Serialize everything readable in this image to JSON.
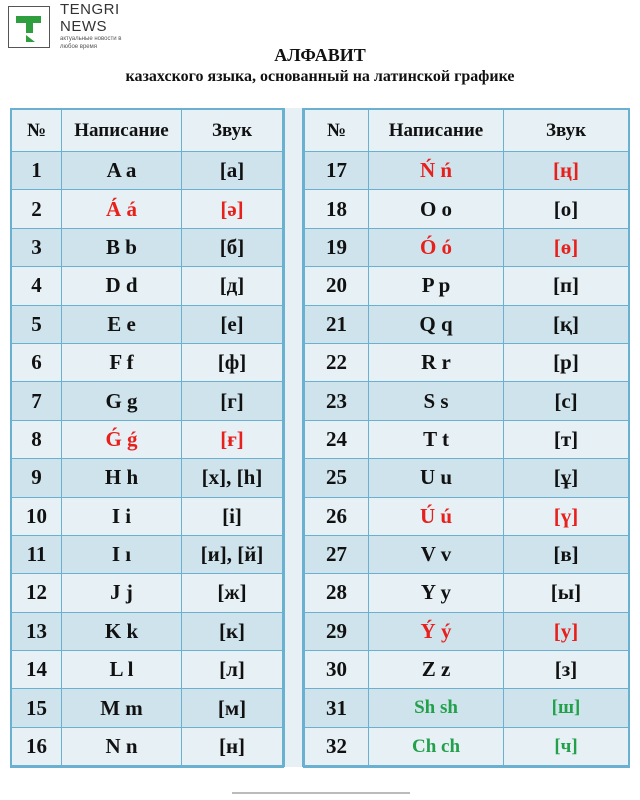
{
  "brand": {
    "name_line1": "TENGRI",
    "name_line2": "NEWS",
    "tagline": "актуальные новости в любое время",
    "color": "#2e9e3e"
  },
  "title": "АЛФАВИТ",
  "subtitle": "казахского языка, основанный на латинской графике",
  "headers": [
    "№",
    "Написание",
    "Звук"
  ],
  "colors": {
    "special": "#e8201c",
    "digraph": "#22a04a",
    "grid": "#6ab0d0"
  },
  "left": [
    {
      "n": "1",
      "letter": "A a",
      "sound": "[а]"
    },
    {
      "n": "2",
      "letter": "Á á",
      "sound": "[ә]",
      "style": "red"
    },
    {
      "n": "3",
      "letter": "B b",
      "sound": "[б]"
    },
    {
      "n": "4",
      "letter": "D d",
      "sound": "[д]"
    },
    {
      "n": "5",
      "letter": "E e",
      "sound": "[е]"
    },
    {
      "n": "6",
      "letter": "F f",
      "sound": "[ф]"
    },
    {
      "n": "7",
      "letter": "G g",
      "sound": "[г]"
    },
    {
      "n": "8",
      "letter": "Ǵ ǵ",
      "sound": "[ғ]",
      "style": "red"
    },
    {
      "n": "9",
      "letter": "H h",
      "sound": "[х],  [h]"
    },
    {
      "n": "10",
      "letter": "I i",
      "sound": "[і]"
    },
    {
      "n": "11",
      "letter": "I ı",
      "sound": "[и], [й]"
    },
    {
      "n": "12",
      "letter": "J j",
      "sound": "[ж]"
    },
    {
      "n": "13",
      "letter": "K k",
      "sound": "[к]"
    },
    {
      "n": "14",
      "letter": "L l",
      "sound": "[л]"
    },
    {
      "n": "15",
      "letter": "M m",
      "sound": "[м]"
    },
    {
      "n": "16",
      "letter": "N n",
      "sound": "[н]"
    }
  ],
  "right": [
    {
      "n": "17",
      "letter": "Ń ń",
      "sound": "[ң]",
      "style": "red"
    },
    {
      "n": "18",
      "letter": "O o",
      "sound": "[о]"
    },
    {
      "n": "19",
      "letter": "Ó ó",
      "sound": "[ө]",
      "style": "red"
    },
    {
      "n": "20",
      "letter": "P p",
      "sound": "[п]"
    },
    {
      "n": "21",
      "letter": "Q q",
      "sound": "[қ]"
    },
    {
      "n": "22",
      "letter": "R r",
      "sound": "[р]"
    },
    {
      "n": "23",
      "letter": "S s",
      "sound": "[с]"
    },
    {
      "n": "24",
      "letter": "T t",
      "sound": "[т]"
    },
    {
      "n": "25",
      "letter": "U u",
      "sound": "[ұ]"
    },
    {
      "n": "26",
      "letter": "Ú ú",
      "sound": "[ү]",
      "style": "red"
    },
    {
      "n": "27",
      "letter": "V v",
      "sound": "[в]"
    },
    {
      "n": "28",
      "letter": "Y y",
      "sound": "[ы]"
    },
    {
      "n": "29",
      "letter": "Ý ý",
      "sound": "[у]",
      "style": "red"
    },
    {
      "n": "30",
      "letter": "Z z",
      "sound": "[з]"
    },
    {
      "n": "31",
      "letter": "Sh sh",
      "sound": "[ш]",
      "style": "green"
    },
    {
      "n": "32",
      "letter": "Ch ch",
      "sound": "[ч]",
      "style": "green"
    }
  ]
}
